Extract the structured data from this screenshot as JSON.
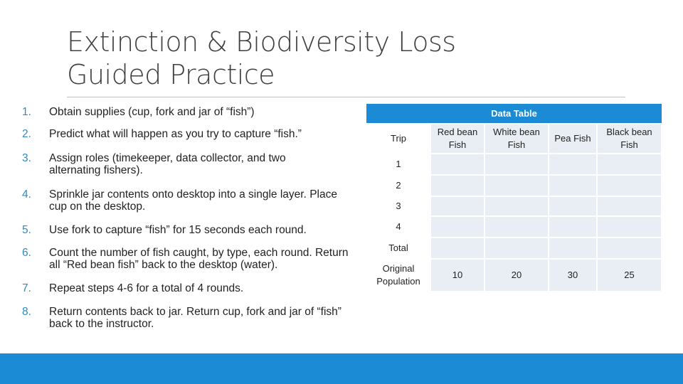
{
  "title": {
    "line1": "Extinction & Biodiversity Loss",
    "line2": "Guided Practice"
  },
  "steps": [
    {
      "num": "1.",
      "text": "Obtain supplies (cup, fork and jar of “fish”)"
    },
    {
      "num": "2.",
      "text": "Predict what will happen as you try to capture “fish.”"
    },
    {
      "num": "3.",
      "text": "Assign roles (timekeeper, data collector, and two alternating fishers)."
    },
    {
      "num": "4.",
      "text": "Sprinkle jar contents onto desktop into a single layer. Place cup on the desktop."
    },
    {
      "num": "5.",
      "text": "Use fork to capture “fish” for 15 seconds each round."
    },
    {
      "num": "6.",
      "text": "Count the number of fish caught, by type, each round. Return all “Red bean fish” back to the desktop (water)."
    },
    {
      "num": "7.",
      "text": "Repeat steps 4-6 for a total of 4 rounds."
    },
    {
      "num": "8.",
      "text": "Return contents back to jar. Return cup, fork and jar of “fish” back to the instructor."
    }
  ],
  "table": {
    "title": "Data Table",
    "headers": [
      "Trip",
      "Red bean Fish",
      "White bean Fish",
      "Pea Fish",
      "Black bean Fish"
    ],
    "rows": [
      [
        "1",
        "",
        "",
        "",
        ""
      ],
      [
        "2",
        "",
        "",
        "",
        ""
      ],
      [
        "3",
        "",
        "",
        "",
        ""
      ],
      [
        "4",
        "",
        "",
        "",
        ""
      ],
      [
        "Total",
        "",
        "",
        "",
        ""
      ],
      [
        "Original Population",
        "10",
        "20",
        "30",
        "25"
      ]
    ]
  },
  "colors": {
    "accent": "#1c8bd6",
    "number": "#2e8bc0",
    "cell": "#e9eef4"
  }
}
